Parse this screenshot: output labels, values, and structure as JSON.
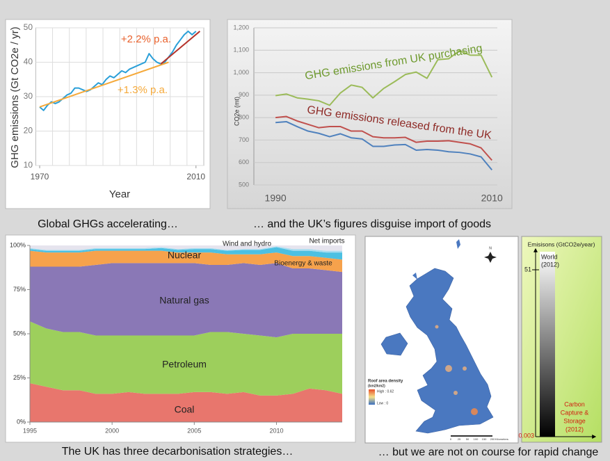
{
  "chart_data": [
    {
      "type": "line",
      "xlabel": "Year",
      "ylabel": "GHG emissions (Gt CO2e / yr)",
      "xlim": [
        1969,
        2012
      ],
      "xticks": [
        1970,
        2010
      ],
      "ylim": [
        10,
        50
      ],
      "yticks": [
        10,
        20,
        30,
        40,
        50
      ],
      "grid": true,
      "annotations": [
        "+2.2% p.a.",
        "+1.3% p.a."
      ],
      "series": [
        {
          "color": "#2a9fd8",
          "x": [
            1970,
            1971,
            1972,
            1973,
            1974,
            1975,
            1976,
            1977,
            1978,
            1979,
            1980,
            1981,
            1982,
            1983,
            1984,
            1985,
            1986,
            1987,
            1988,
            1989,
            1990,
            1991,
            1992,
            1993,
            1994,
            1995,
            1996,
            1997,
            1998,
            1999,
            2000,
            2001,
            2002,
            2003,
            2004,
            2005,
            2006,
            2007,
            2008,
            2009,
            2010
          ],
          "values": [
            27,
            26,
            27.5,
            28.5,
            28,
            28.5,
            29.5,
            30.5,
            31,
            32.5,
            32.5,
            32,
            31.5,
            32,
            33,
            34,
            33.5,
            35,
            36,
            35.5,
            36.5,
            37.5,
            37,
            38,
            38.5,
            39,
            39.5,
            40,
            42.5,
            41,
            40,
            39.5,
            40,
            41.5,
            43,
            45,
            46.5,
            48,
            49,
            48,
            49
          ]
        },
        {
          "color": "#f5a93a",
          "x": [
            1970,
            2003
          ],
          "values": [
            27,
            40
          ]
        },
        {
          "color": "#b5332b",
          "x": [
            2001,
            2011
          ],
          "values": [
            39.5,
            49
          ]
        }
      ]
    },
    {
      "type": "line",
      "ylabel": "CO2e (mt)",
      "xlim": [
        1988,
        2010.5
      ],
      "xticks": [
        1990,
        2010
      ],
      "ylim": [
        500,
        1200
      ],
      "yticks": [
        500,
        600,
        700,
        800,
        900,
        {
          "value": 1000,
          "label": "1,000"
        },
        {
          "value": 1100,
          "label": "1,100"
        },
        {
          "value": 1200,
          "label": "1,200"
        }
      ],
      "grid": true,
      "annotations": [
        "GHG emissions from UK purchasing",
        "GHG emissions released from the UK"
      ],
      "x": [
        1990,
        1991,
        1992,
        1993,
        1994,
        1995,
        1996,
        1997,
        1998,
        1999,
        2000,
        2001,
        2002,
        2003,
        2004,
        2005,
        2006,
        2007,
        2008,
        2009,
        2010
      ],
      "series": [
        {
          "color": "#9bbb59",
          "values": [
            898,
            905,
            888,
            882,
            875,
            855,
            910,
            945,
            935,
            888,
            930,
            960,
            992,
            1003,
            975,
            1058,
            1062,
            1098,
            1078,
            1078,
            980
          ]
        },
        {
          "color": "#c0504d",
          "values": [
            800,
            805,
            785,
            770,
            755,
            760,
            760,
            740,
            740,
            715,
            710,
            710,
            712,
            690,
            695,
            695,
            697,
            690,
            683,
            665,
            610
          ]
        },
        {
          "color": "#4f81bd",
          "values": [
            778,
            782,
            760,
            740,
            730,
            715,
            728,
            710,
            705,
            672,
            672,
            678,
            680,
            655,
            658,
            655,
            648,
            645,
            638,
            625,
            567
          ]
        }
      ]
    },
    {
      "type": "stacked_area",
      "xlim": [
        1995,
        2014
      ],
      "xticks": [
        1995,
        2000,
        2005,
        2010
      ],
      "ylim": [
        0,
        100
      ],
      "yticks": [
        {
          "value": 0,
          "label": "0%"
        },
        {
          "value": 25,
          "label": "25%"
        },
        {
          "value": 50,
          "label": "50%"
        },
        {
          "value": 75,
          "label": "75%"
        },
        {
          "value": 100,
          "label": "100%"
        }
      ],
      "x": [
        1995,
        1996,
        1997,
        1998,
        1999,
        2000,
        2001,
        2002,
        2003,
        2004,
        2005,
        2006,
        2007,
        2008,
        2009,
        2010,
        2011,
        2012,
        2013,
        2014
      ],
      "series": [
        {
          "name": "Coal",
          "color": "#e8766d",
          "values": [
            22,
            20,
            18,
            18,
            16,
            16,
            17,
            16,
            16,
            16,
            17,
            17,
            16,
            17,
            15,
            15,
            16,
            19,
            18,
            16
          ]
        },
        {
          "name": "Petroleum",
          "color": "#9dcf5c",
          "values": [
            35,
            33,
            33,
            33,
            33,
            33,
            32,
            33,
            33,
            33,
            32,
            34,
            35,
            33,
            34,
            33,
            34,
            31,
            32,
            34
          ]
        },
        {
          "name": "Natural gas",
          "color": "#8a78b6",
          "values": [
            31,
            35,
            37,
            37,
            40,
            41,
            41,
            41,
            41,
            41,
            41,
            38,
            38,
            40,
            40,
            42,
            37,
            37,
            36,
            35
          ]
        },
        {
          "name": "Nuclear",
          "color": "#f6a24c",
          "values": [
            9,
            8,
            8,
            8,
            8,
            7,
            7,
            7,
            7,
            6,
            6,
            7,
            6,
            5,
            6,
            6,
            7,
            7,
            7,
            7
          ]
        },
        {
          "name": "Bioenergy & waste",
          "color": "#4cc0e2",
          "values": [
            1,
            1,
            1,
            1,
            1,
            1,
            1,
            1,
            1.5,
            1.5,
            2,
            2,
            2,
            2.5,
            2.5,
            3,
            3,
            3,
            3,
            4
          ]
        },
        {
          "name": "Wind and hydro",
          "color": "#a9dcef",
          "values": [
            0.5,
            0.5,
            0.5,
            0.5,
            0.5,
            0.5,
            0.5,
            0.5,
            0.5,
            0.5,
            0.5,
            0.5,
            0.5,
            0.5,
            0.5,
            0.5,
            1,
            1,
            1,
            1
          ]
        },
        {
          "name": "Net imports",
          "color": "#e6e4ee",
          "values": [
            1.5,
            2.5,
            2.5,
            2.5,
            1.5,
            1.5,
            1.5,
            1.5,
            1,
            2,
            1.5,
            1.5,
            2.5,
            2,
            2,
            0.5,
            2,
            2,
            3,
            3
          ]
        }
      ]
    }
  ],
  "captions": [
    "Global GHGs accelerating…",
    "… and the UK’s figures disguise import of goods",
    "The UK has three decarbonisation strategies…",
    "… but we are not on course for rapid change"
  ],
  "map": {
    "legend_title": "Roof area density",
    "legend_units": "(km2/km2)",
    "high": "High : 0.62",
    "low": "Low : 0",
    "scale_ticks": [
      0,
      25,
      50,
      100,
      150,
      200
    ],
    "scale_label": "Kilometers",
    "north": "N"
  },
  "gauge": {
    "title": "Emisisons (GtCO2e/year)",
    "top_label": [
      "World",
      "(2012)"
    ],
    "top_value": 51,
    "bottom_value": 0.003,
    "bottom_label": [
      "Carbon",
      "Capture &",
      "Storage",
      "(2012)"
    ]
  }
}
